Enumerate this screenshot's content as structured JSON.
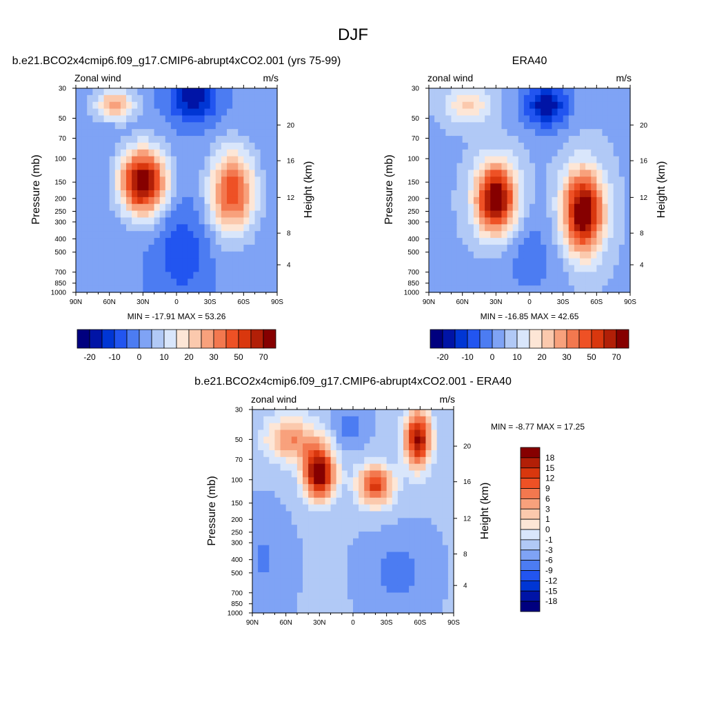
{
  "figure": {
    "title": "DJF"
  },
  "color_scale_abs": [
    "#00007f",
    "#0014a6",
    "#0036d4",
    "#2255f0",
    "#4c7cf2",
    "#7fa3f5",
    "#b1c9f6",
    "#d9e6fb",
    "#fde6d6",
    "#fbc9ad",
    "#f8a17c",
    "#f3784f",
    "#ee5125",
    "#d9370e",
    "#b21f07",
    "#860000"
  ],
  "color_scale_diff": [
    "#00007f",
    "#0014a6",
    "#0036d4",
    "#2255f0",
    "#4c7cf2",
    "#7fa3f5",
    "#b1c9f6",
    "#d9e6fb",
    "#fde6d6",
    "#fbc9ad",
    "#f8a17c",
    "#f3784f",
    "#ee5125",
    "#d9370e",
    "#b21f07",
    "#860000"
  ],
  "chart_data": [
    {
      "type": "heatmap",
      "title": "b.e21.BCO2x4cmip6.f09_g17.CMIP6-abrupt4xCO2.001 (yrs 75-99)",
      "left_label": "Zonal wind",
      "right_label": "m/s",
      "ylabel": "Pressure (mb)",
      "y2label": "Height (km)",
      "x_ticks": [
        "90N",
        "60N",
        "30N",
        "0",
        "30S",
        "60S",
        "90S"
      ],
      "y_ticks": [
        "30",
        "50",
        "70",
        "100",
        "150",
        "200",
        "250",
        "300",
        "400",
        "500",
        "700",
        "850",
        "1000"
      ],
      "y2_ticks": [
        "20",
        "16",
        "12",
        "8",
        "4"
      ],
      "stats": "MIN = -17.91  MAX =  53.26",
      "colorbar_labels": [
        "-20",
        "-10",
        "0",
        "10",
        "20",
        "30",
        "50",
        "70"
      ],
      "min": -17.91,
      "max": 53.26,
      "blobs": [
        {
          "x": 30,
          "p": 150,
          "v": 50,
          "sx": 10,
          "sy": 0.55
        },
        {
          "x": 55,
          "p": 40,
          "v": 25,
          "sx": 9,
          "sy": 0.25
        },
        {
          "x": -50,
          "p": 180,
          "v": 35,
          "sx": 10,
          "sy": 0.7
        },
        {
          "x": -15,
          "p": 35,
          "v": -18,
          "sx": 10,
          "sy": 0.4
        },
        {
          "x": -5,
          "p": 500,
          "v": -8,
          "sx": 12,
          "sy": 0.8
        }
      ]
    },
    {
      "type": "heatmap",
      "title": "ERA40",
      "left_label": "zonal wind",
      "right_label": "m/s",
      "ylabel": "Pressure (mb)",
      "y2label": "Height (km)",
      "x_ticks": [
        "90N",
        "60N",
        "30N",
        "0",
        "30S",
        "60S",
        "90S"
      ],
      "y_ticks": [
        "30",
        "50",
        "70",
        "100",
        "150",
        "200",
        "250",
        "300",
        "400",
        "500",
        "700",
        "850",
        "1000"
      ],
      "y2_ticks": [
        "20",
        "16",
        "12",
        "8",
        "4"
      ],
      "stats": "MIN = -16.85  MAX =  42.65",
      "colorbar_labels": [
        "-20",
        "-10",
        "0",
        "10",
        "20",
        "30",
        "50",
        "70"
      ],
      "min": -16.85,
      "max": 42.65,
      "blobs": [
        {
          "x": 30,
          "p": 200,
          "v": 40,
          "sx": 9,
          "sy": 0.6
        },
        {
          "x": 55,
          "p": 40,
          "v": 12,
          "sx": 10,
          "sy": 0.3
        },
        {
          "x": -48,
          "p": 250,
          "v": 40,
          "sx": 9,
          "sy": 0.7
        },
        {
          "x": -15,
          "p": 40,
          "v": -17,
          "sx": 10,
          "sy": 0.4
        },
        {
          "x": 0,
          "p": 550,
          "v": -5,
          "sx": 15,
          "sy": 0.8
        }
      ]
    },
    {
      "type": "heatmap",
      "title": "b.e21.BCO2x4cmip6.f09_g17.CMIP6-abrupt4xCO2.001 - ERA40",
      "left_label": "zonal wind",
      "right_label": "m/s",
      "ylabel": "Pressure (mb)",
      "y2label": "Height (km)",
      "x_ticks": [
        "90N",
        "60N",
        "30N",
        "0",
        "30S",
        "60S",
        "90S"
      ],
      "y_ticks": [
        "30",
        "50",
        "70",
        "100",
        "150",
        "200",
        "250",
        "300",
        "400",
        "500",
        "700",
        "850",
        "1000"
      ],
      "y2_ticks": [
        "20",
        "16",
        "12",
        "8",
        "4"
      ],
      "stats": "MIN =  -8.77  MAX =  17.25",
      "colorbar_labels": [
        "18",
        "15",
        "12",
        "9",
        "6",
        "3",
        "1",
        "0",
        "-1",
        "-3",
        "-6",
        "-9",
        "-12",
        "-15",
        "-18"
      ],
      "min": -8.77,
      "max": 17.25,
      "blobs": [
        {
          "x": 30,
          "p": 90,
          "v": 17,
          "sx": 7,
          "sy": 0.45
        },
        {
          "x": -58,
          "p": 50,
          "v": 15,
          "sx": 6,
          "sy": 0.5
        },
        {
          "x": -20,
          "p": 110,
          "v": 12,
          "sx": 8,
          "sy": 0.35
        },
        {
          "x": 55,
          "p": 50,
          "v": 8,
          "sx": 12,
          "sy": 0.4
        },
        {
          "x": 5,
          "p": 40,
          "v": -3,
          "sx": 6,
          "sy": 0.3
        },
        {
          "x": -40,
          "p": 500,
          "v": -3,
          "sx": 10,
          "sy": 0.5
        },
        {
          "x": 80,
          "p": 400,
          "v": -2,
          "sx": 8,
          "sy": 0.6
        }
      ]
    }
  ]
}
